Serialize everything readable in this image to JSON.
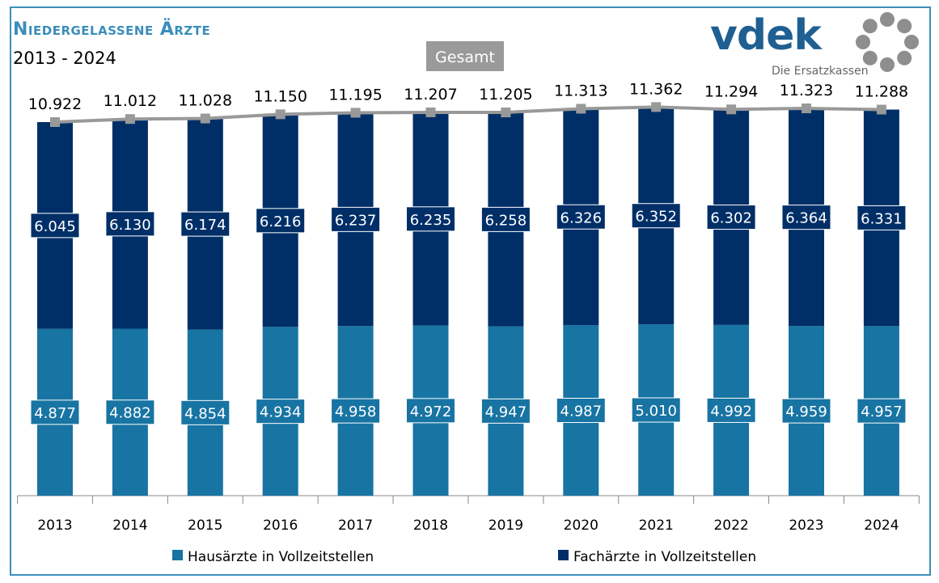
{
  "chart_data": {
    "type": "bar",
    "stacked": true,
    "title": "Niedergelassene Ärzte",
    "subtitle": "2013 - 2024",
    "categories": [
      "2013",
      "2014",
      "2015",
      "2016",
      "2017",
      "2018",
      "2019",
      "2020",
      "2021",
      "2022",
      "2023",
      "2024"
    ],
    "series": [
      {
        "name": "Hausärzte in Vollzeitstellen",
        "color": "#1874a3",
        "values": [
          4877,
          4882,
          4854,
          4934,
          4958,
          4972,
          4947,
          4987,
          5010,
          4992,
          4959,
          4957
        ],
        "labels": [
          "4.877",
          "4.882",
          "4.854",
          "4.934",
          "4.958",
          "4.972",
          "4.947",
          "4.987",
          "5.010",
          "4.992",
          "4.959",
          "4.957"
        ]
      },
      {
        "name": "Fachärzte in Vollzeitstellen",
        "color": "#002f68",
        "values": [
          6045,
          6130,
          6174,
          6216,
          6237,
          6235,
          6258,
          6326,
          6352,
          6302,
          6364,
          6331
        ],
        "labels": [
          "6.045",
          "6.130",
          "6.174",
          "6.216",
          "6.237",
          "6.235",
          "6.258",
          "6.326",
          "6.352",
          "6.302",
          "6.364",
          "6.331"
        ]
      }
    ],
    "line": {
      "name": "Gesamt",
      "color": "#999999",
      "values": [
        10922,
        11012,
        11028,
        11150,
        11195,
        11207,
        11205,
        11313,
        11362,
        11294,
        11323,
        11288
      ],
      "labels": [
        "10.922",
        "11.012",
        "11.028",
        "11.150",
        "11.195",
        "11.207",
        "11.205",
        "11.313",
        "11.362",
        "11.294",
        "11.323",
        "11.288"
      ]
    },
    "legend_position": "bottom",
    "grid": false
  },
  "logo": {
    "name": "vdek",
    "tagline": "Die Ersatzkassen"
  },
  "colors": {
    "frame": "#3c8fba",
    "title": "#3a8dbb"
  }
}
